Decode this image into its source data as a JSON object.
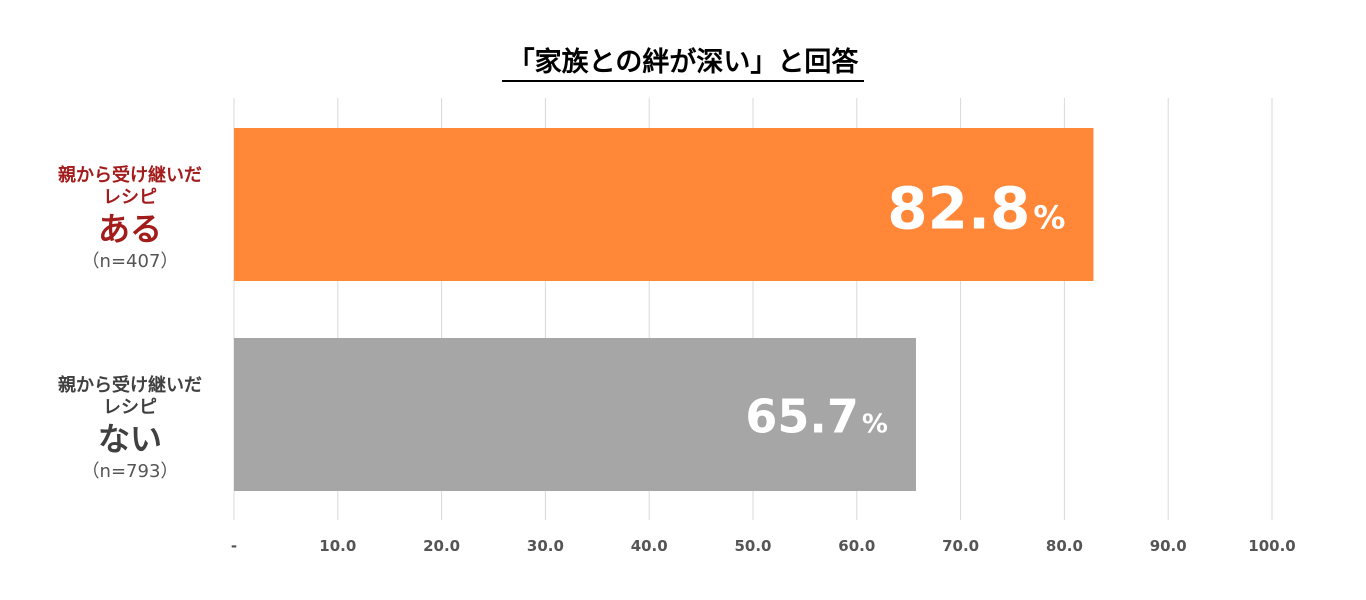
{
  "chart_data": {
    "type": "bar",
    "orientation": "horizontal",
    "title": "「家族との絆が深い」と回答",
    "categories": [
      {
        "line1": "親から受け継いだ",
        "line2": "レシピ",
        "line3": "ある",
        "line4": "（n=407）",
        "color": "#ff8737",
        "label_color": "#a31c1c"
      },
      {
        "line1": "親から受け継いだ",
        "line2": "レシピ",
        "line3": "ない",
        "line4": "（n=793）",
        "color": "#a6a6a6",
        "label_color": "#404040"
      }
    ],
    "values": [
      82.8,
      65.7
    ],
    "value_labels": [
      "82.8",
      "65.7"
    ],
    "value_unit": "%",
    "xlim": [
      0,
      100
    ],
    "x_ticks": [
      0,
      10,
      20,
      30,
      40,
      50,
      60,
      70,
      80,
      90,
      100
    ],
    "x_tick_labels": [
      "-",
      "10.0",
      "20.0",
      "30.0",
      "40.0",
      "50.0",
      "60.0",
      "70.0",
      "80.0",
      "90.0",
      "100.0"
    ],
    "grid": "vertical",
    "grid_color": "#d9d9d9"
  }
}
